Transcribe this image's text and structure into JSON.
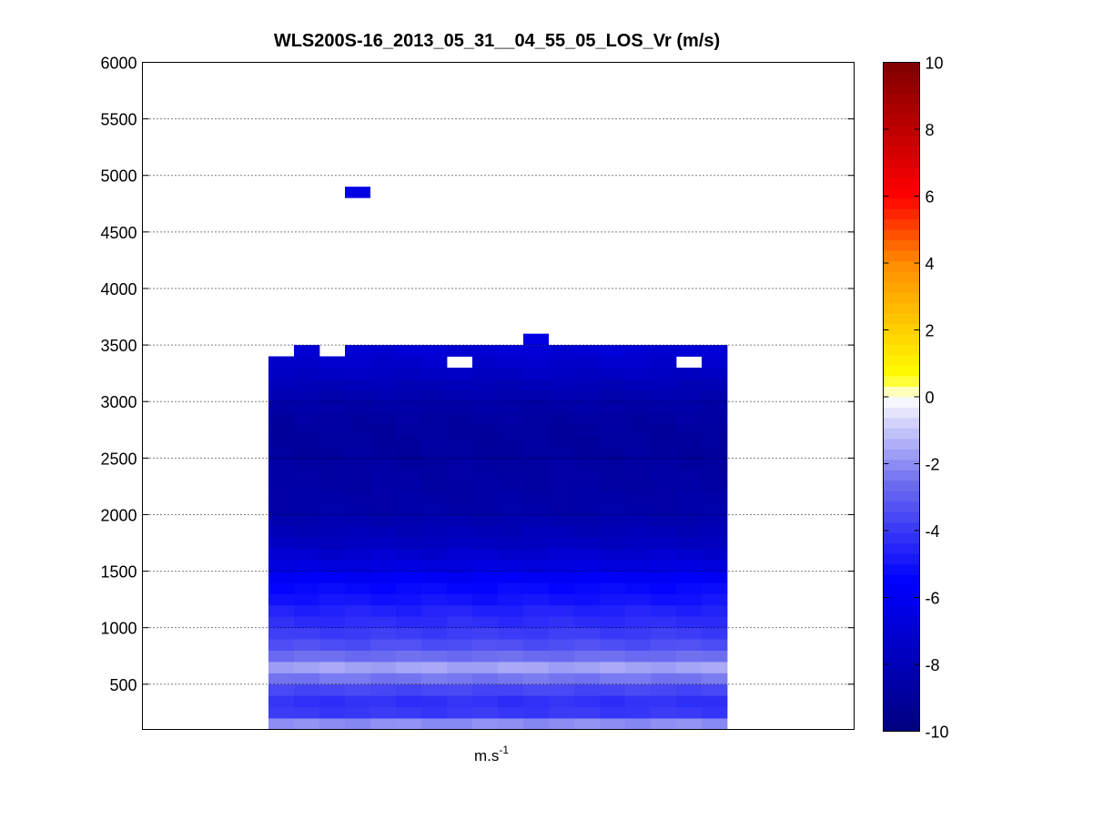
{
  "chart_data": {
    "type": "heatmap",
    "title": "WLS200S-16_2013_05_31__04_55_05_LOS_Vr (m/s)",
    "xlabel": {
      "base": "m.s",
      "superscript": "-1"
    },
    "ylabel": "",
    "ylim": [
      100,
      6000
    ],
    "yticks": [
      500,
      1000,
      1500,
      2000,
      2500,
      3000,
      3500,
      4000,
      4500,
      5000,
      5500,
      6000
    ],
    "grid": "horizontal dotted",
    "colorbar": {
      "range": [
        -10,
        10
      ],
      "ticks": [
        -10,
        -8,
        -6,
        -4,
        -2,
        0,
        2,
        4,
        6,
        8,
        10
      ],
      "colormap": "blue-white-yellow-red",
      "colors": {
        "min": "#00007f",
        "mid_blue": "#0000ff",
        "zero": "#ffffff",
        "yellow": "#ffff00",
        "red": "#ff0000",
        "max": "#7f0000"
      }
    },
    "time_columns": 18,
    "cell_height_m": 100,
    "profile": {
      "altitude_m": [
        150,
        250,
        350,
        450,
        550,
        650,
        750,
        850,
        950,
        1050,
        1150,
        1250,
        1350,
        1450,
        1550,
        1650,
        1750,
        1850,
        1950,
        2050,
        2150,
        2250,
        2350,
        2450,
        2550,
        2650,
        2750,
        2850,
        2950,
        3050,
        3150,
        3250,
        3350,
        3450
      ],
      "vr_ms": [
        -2.0,
        -4.0,
        -4.2,
        -3.6,
        -2.4,
        -1.6,
        -2.6,
        -3.4,
        -3.9,
        -4.3,
        -4.6,
        -5.0,
        -5.3,
        -5.8,
        -6.6,
        -7.2,
        -7.7,
        -8.0,
        -8.3,
        -8.5,
        -8.6,
        -8.7,
        -8.7,
        -8.8,
        -8.9,
        -8.9,
        -8.9,
        -8.8,
        -8.6,
        -8.3,
        -8.0,
        -7.6,
        -7.3,
        -7.0
      ]
    },
    "column_top_m": [
      3400,
      3500,
      3400,
      3500,
      3500,
      3500,
      3500,
      3500,
      3500,
      3500,
      3600,
      3500,
      3500,
      3500,
      3500,
      3500,
      3500,
      3500
    ],
    "extra_cells": [
      {
        "column": 3,
        "altitude_m": 4850,
        "vr_ms": -6.5
      },
      {
        "column": 10,
        "altitude_m": 3550,
        "vr_ms": -6.5
      }
    ],
    "missing_cells": [
      {
        "column": 7,
        "altitude_m": 3350
      },
      {
        "column": 16,
        "altitude_m": 3350
      }
    ]
  }
}
